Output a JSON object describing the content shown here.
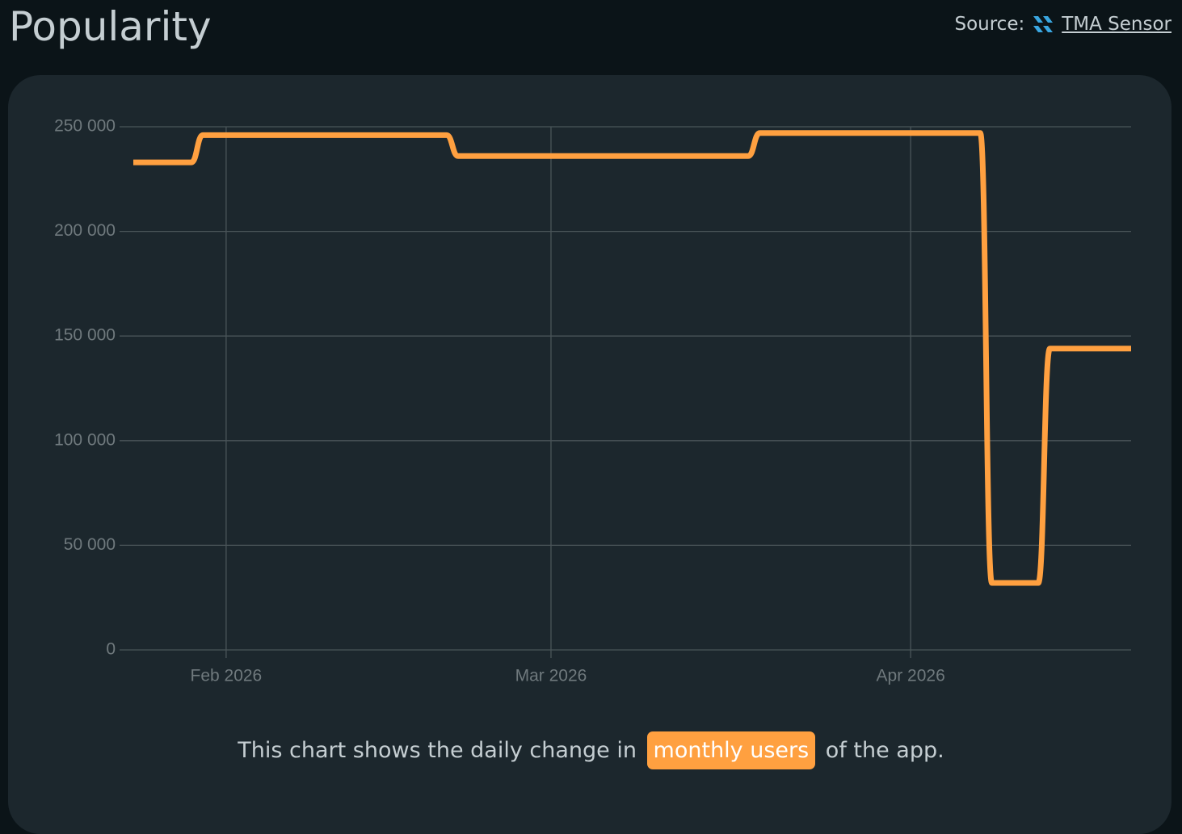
{
  "header": {
    "title": "Popularity",
    "source_label": "Source:",
    "source_link": "TMA Sensor"
  },
  "caption": {
    "before": "This chart shows the daily change in",
    "highlight": "monthly users",
    "after": "of the app."
  },
  "chart_data": {
    "type": "line",
    "categories": [
      null,
      null,
      null,
      null,
      null,
      null,
      null,
      null,
      "Feb 2026",
      null,
      null,
      null,
      null,
      null,
      null,
      null,
      null,
      null,
      null,
      null,
      null,
      null,
      null,
      null,
      null,
      null,
      null,
      null,
      null,
      null,
      null,
      null,
      null,
      null,
      null,
      null,
      "Mar 2026",
      null,
      null,
      null,
      null,
      null,
      null,
      null,
      null,
      null,
      null,
      null,
      null,
      null,
      null,
      null,
      null,
      null,
      null,
      null,
      null,
      null,
      null,
      null,
      null,
      null,
      null,
      null,
      null,
      null,
      null,
      "Apr 2026",
      null,
      null,
      null,
      null,
      null,
      null,
      null,
      null,
      null,
      null,
      null,
      null,
      null,
      null,
      null,
      null,
      null,
      null,
      null
    ],
    "series": [
      {
        "color": "#ffa040",
        "values": [
          233000,
          233000,
          233000,
          233000,
          233000,
          233000,
          246000,
          246000,
          246000,
          246000,
          246000,
          246000,
          246000,
          246000,
          246000,
          246000,
          246000,
          246000,
          246000,
          246000,
          246000,
          246000,
          246000,
          246000,
          246000,
          246000,
          246000,
          246000,
          236000,
          236000,
          236000,
          236000,
          236000,
          236000,
          236000,
          236000,
          236000,
          236000,
          236000,
          236000,
          236000,
          236000,
          236000,
          236000,
          236000,
          236000,
          236000,
          236000,
          236000,
          236000,
          236000,
          236000,
          236000,
          236000,
          247000,
          247000,
          247000,
          247000,
          247000,
          247000,
          247000,
          247000,
          247000,
          247000,
          247000,
          247000,
          247000,
          247000,
          247000,
          247000,
          247000,
          247000,
          247000,
          247000,
          32000,
          32000,
          32000,
          32000,
          32000,
          144000,
          144000,
          144000,
          144000,
          144000,
          144000,
          144000,
          144000
        ]
      }
    ],
    "ylim": [
      0,
      250000
    ],
    "yticks": [
      0,
      {
        "value": 50000,
        "label": "50 000"
      },
      {
        "value": 100000,
        "label": "100 000"
      },
      {
        "value": 150000,
        "label": "150 000"
      },
      {
        "value": 200000,
        "label": "200 000"
      },
      {
        "value": 250000,
        "label": "250 000"
      }
    ],
    "grid": true
  }
}
